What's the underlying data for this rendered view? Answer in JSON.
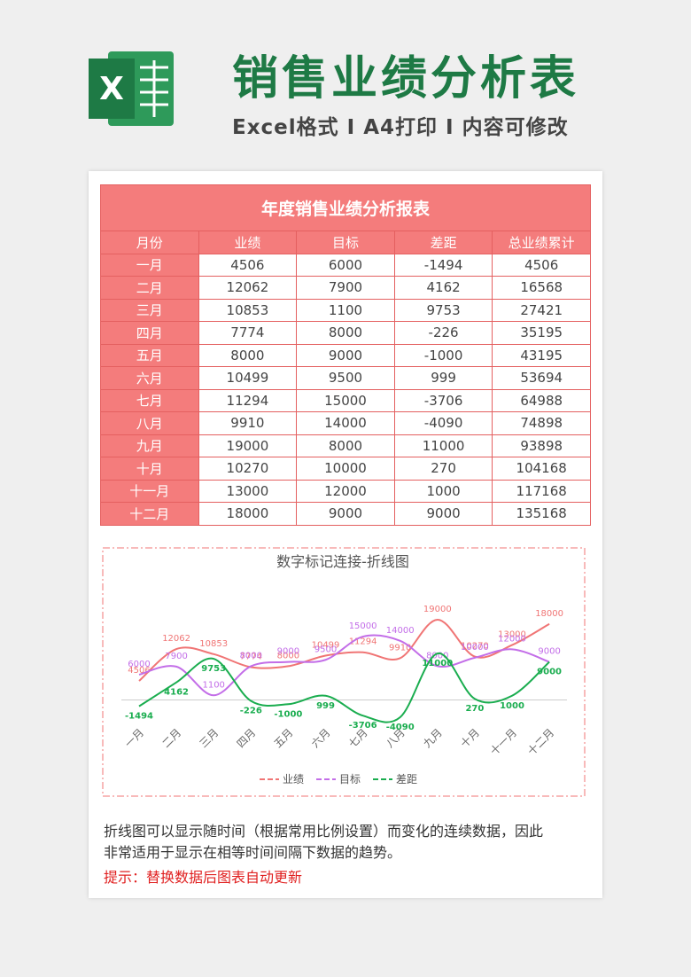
{
  "header": {
    "title": "销售业绩分析表",
    "subtitle": "Excel格式 I A4打印 I 内容可修改"
  },
  "table": {
    "title": "年度销售业绩分析报表",
    "columns": [
      "月份",
      "业绩",
      "目标",
      "差距",
      "总业绩累计"
    ],
    "rows": [
      [
        "一月",
        4506,
        6000,
        -1494,
        4506
      ],
      [
        "二月",
        12062,
        7900,
        4162,
        16568
      ],
      [
        "三月",
        10853,
        1100,
        9753,
        27421
      ],
      [
        "四月",
        7774,
        8000,
        -226,
        35195
      ],
      [
        "五月",
        8000,
        9000,
        -1000,
        43195
      ],
      [
        "六月",
        10499,
        9500,
        999,
        53694
      ],
      [
        "七月",
        11294,
        15000,
        -3706,
        64988
      ],
      [
        "八月",
        9910,
        14000,
        -4090,
        74898
      ],
      [
        "九月",
        19000,
        8000,
        11000,
        93898
      ],
      [
        "十月",
        10270,
        10000,
        270,
        104168
      ],
      [
        "十一月",
        13000,
        12000,
        1000,
        117168
      ],
      [
        "十二月",
        18000,
        9000,
        9000,
        135168
      ]
    ]
  },
  "chart_data": {
    "type": "line",
    "title": "数字标记连接-折线图",
    "categories": [
      "一月",
      "二月",
      "三月",
      "四月",
      "五月",
      "六月",
      "七月",
      "八月",
      "九月",
      "十月",
      "十一月",
      "十二月"
    ],
    "series": [
      {
        "name": "业绩",
        "color": "#f07575",
        "values": [
          4506,
          12062,
          10853,
          7774,
          8000,
          10499,
          11294,
          9910,
          19000,
          10270,
          13000,
          18000
        ]
      },
      {
        "name": "目标",
        "color": "#c36ee8",
        "values": [
          6000,
          7900,
          1100,
          8000,
          9000,
          9500,
          15000,
          14000,
          8000,
          10000,
          12000,
          9000
        ]
      },
      {
        "name": "差距",
        "color": "#1aad4f",
        "values": [
          -1494,
          4162,
          9753,
          -226,
          -1000,
          999,
          -3706,
          -4090,
          11000,
          270,
          1000,
          9000
        ]
      }
    ]
  },
  "notes": {
    "text": "折线图可以显示随时间（根据常用比例设置）而变化的连续数据，因此非常适用于显示在相等时间间隔下数据的趋势。",
    "hint": "提示：替换数据后图表自动更新"
  }
}
